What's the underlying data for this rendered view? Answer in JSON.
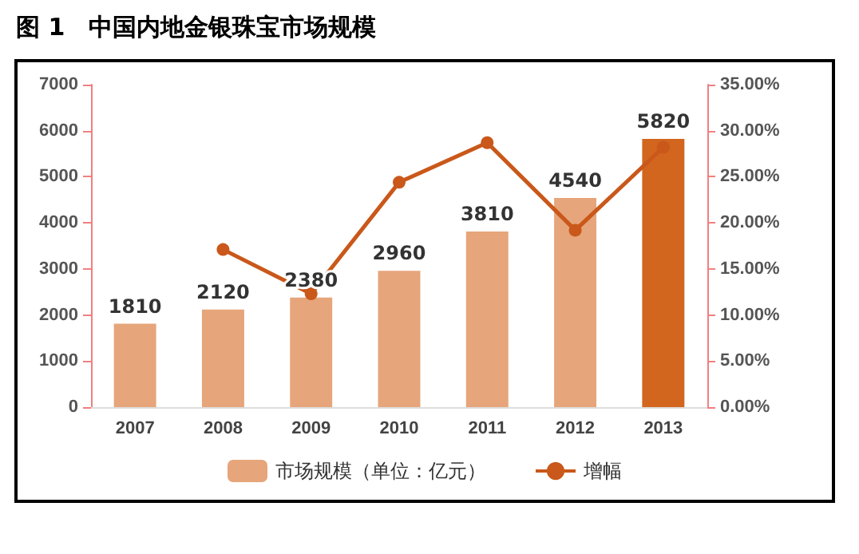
{
  "chart_data": {
    "type": "bar",
    "title": "图 1　中国内地金银珠宝市场规模",
    "categories": [
      "2007",
      "2008",
      "2009",
      "2010",
      "2011",
      "2012",
      "2013"
    ],
    "series": [
      {
        "name": "市场规模（单位：亿元）",
        "color": "#e6a57a",
        "colors": [
          "#e6a57a",
          "#e6a57a",
          "#e6a57a",
          "#e6a57a",
          "#e6a57a",
          "#e6a57a",
          "#d2661e"
        ],
        "values": [
          1810,
          2120,
          2380,
          2960,
          3810,
          4540,
          5820
        ],
        "value_labels": [
          "1810",
          "2120",
          "2380",
          "2960",
          "3810",
          "4540",
          "5820"
        ]
      },
      {
        "name": "增幅",
        "type": "line",
        "axis": "y2",
        "color": "#c9581a",
        "marker": "circle",
        "values": [
          null,
          17.1,
          12.3,
          24.4,
          28.7,
          19.2,
          28.2
        ]
      }
    ],
    "ylim": [
      0,
      7000
    ],
    "yticks": [
      0,
      1000,
      2000,
      3000,
      4000,
      5000,
      6000,
      7000
    ],
    "y2lim": [
      0,
      35
    ],
    "y2ticks": [
      {
        "value": 0,
        "label": "0.00%"
      },
      {
        "value": 5,
        "label": "5.00%"
      },
      {
        "value": 10,
        "label": "10.00%"
      },
      {
        "value": 15,
        "label": "15.00%"
      },
      {
        "value": 20,
        "label": "20.00%"
      },
      {
        "value": 25,
        "label": "25.00%"
      },
      {
        "value": 30,
        "label": "30.00%"
      },
      {
        "value": 35,
        "label": "35.00%"
      }
    ],
    "grid": false,
    "legend": "bottom"
  }
}
